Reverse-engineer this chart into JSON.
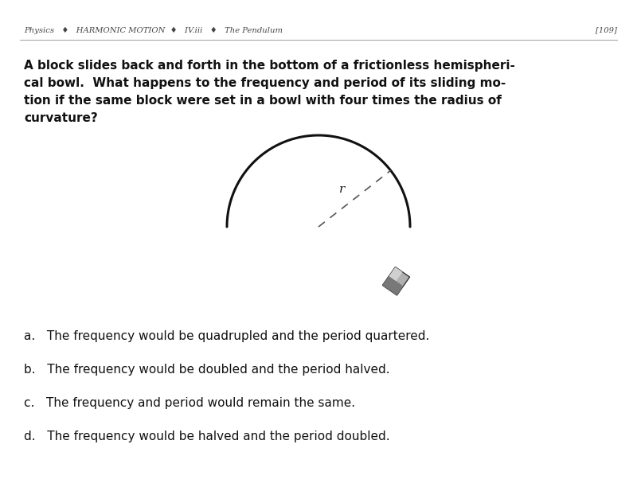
{
  "header_left": "Physics   ♦   HARMONIC MOTION  ♦   IV.iii   ♦   The Pendulum",
  "header_right": "[109]",
  "question_text_lines": [
    "A block slides back and forth in the bottom of a frictionless hemispheri-",
    "cal bowl.  What happens to the frequency and period of its sliding mo-",
    "tion if the same block were set in a bowl with four times the radius of",
    "curvature?"
  ],
  "choices": [
    "a.   The frequency would be quadrupled and the period quartered.",
    "b.   The frequency would be doubled and the period halved.",
    "c.   The frequency and period would remain the same.",
    "d.   The frequency would be halved and the period doubled."
  ],
  "bg_color": "#ffffff",
  "text_color": "#111111",
  "header_color": "#444444",
  "bowl_color": "#111111",
  "radius_label": "r"
}
